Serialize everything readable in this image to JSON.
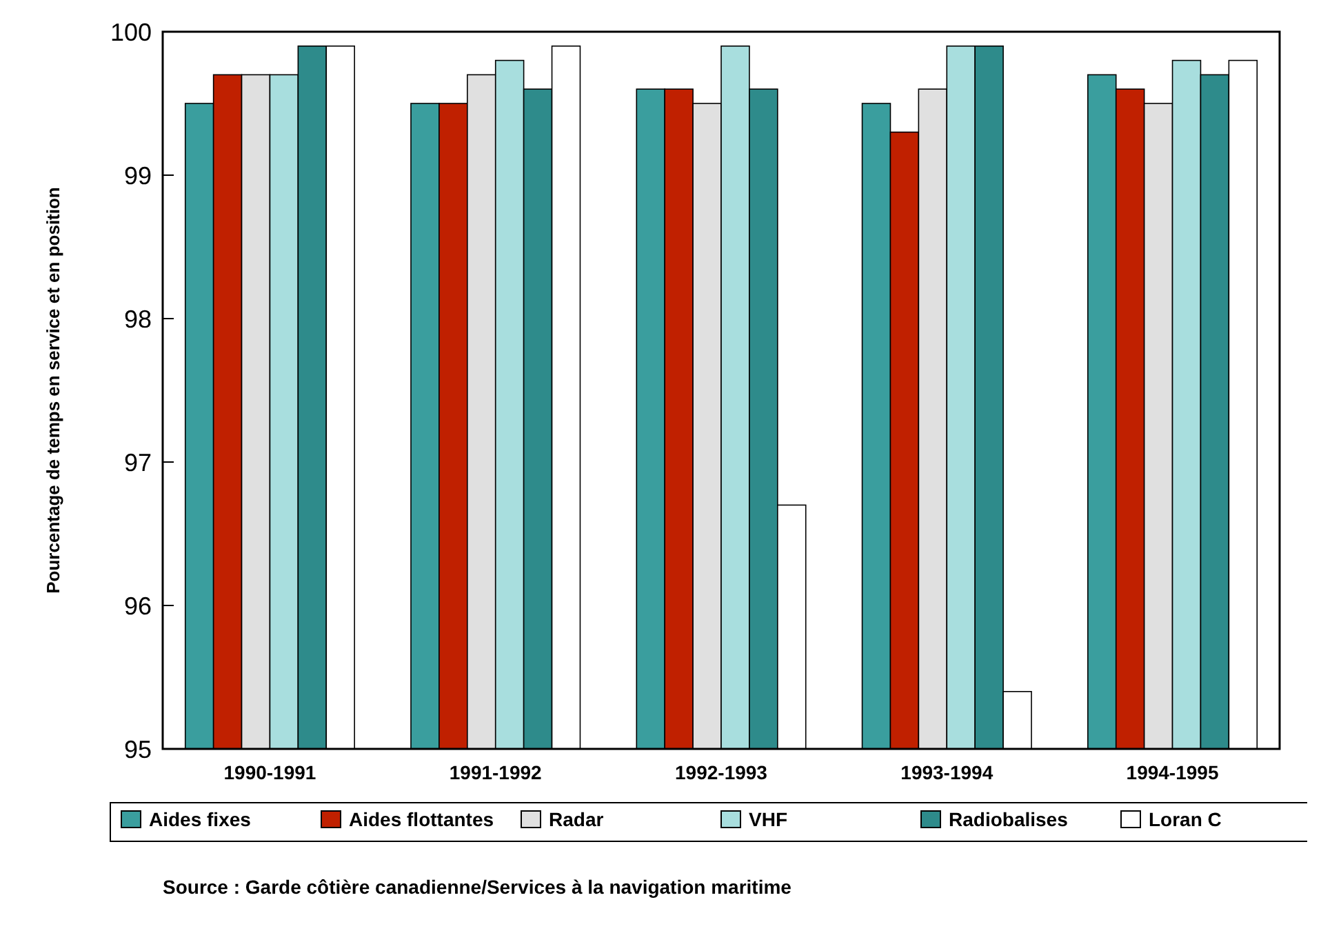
{
  "chart_data": {
    "type": "bar",
    "ylabel": "Pourcentage de temps en service et en position",
    "categories": [
      "1990-1991",
      "1991-1992",
      "1992-1993",
      "1993-1994",
      "1994-1995"
    ],
    "series": [
      {
        "name": "Aides fixes",
        "color": "#3a9e9e",
        "values": [
          99.5,
          99.5,
          99.6,
          99.5,
          99.7
        ]
      },
      {
        "name": "Aides flottantes",
        "color": "#c02000",
        "values": [
          99.7,
          99.5,
          99.6,
          99.3,
          99.6
        ]
      },
      {
        "name": "Radar",
        "color": "#e0e0e0",
        "values": [
          99.7,
          99.7,
          99.5,
          99.6,
          99.5
        ]
      },
      {
        "name": "VHF",
        "color": "#a8dede",
        "values": [
          99.7,
          99.8,
          99.9,
          99.9,
          99.8
        ]
      },
      {
        "name": "Radiobalises",
        "color": "#2e8b8b",
        "values": [
          99.9,
          99.6,
          99.6,
          99.9,
          99.7
        ]
      },
      {
        "name": "Loran C",
        "color": "#ffffff",
        "values": [
          99.9,
          99.9,
          96.7,
          95.4,
          99.8
        ]
      }
    ],
    "ylim": [
      95,
      100
    ],
    "yticks": [
      95,
      96,
      97,
      98,
      99,
      100
    ],
    "grid": false,
    "legend": "bottom",
    "annotations": [
      "Source : Garde côtière canadienne/Services à la navigation maritime"
    ]
  }
}
